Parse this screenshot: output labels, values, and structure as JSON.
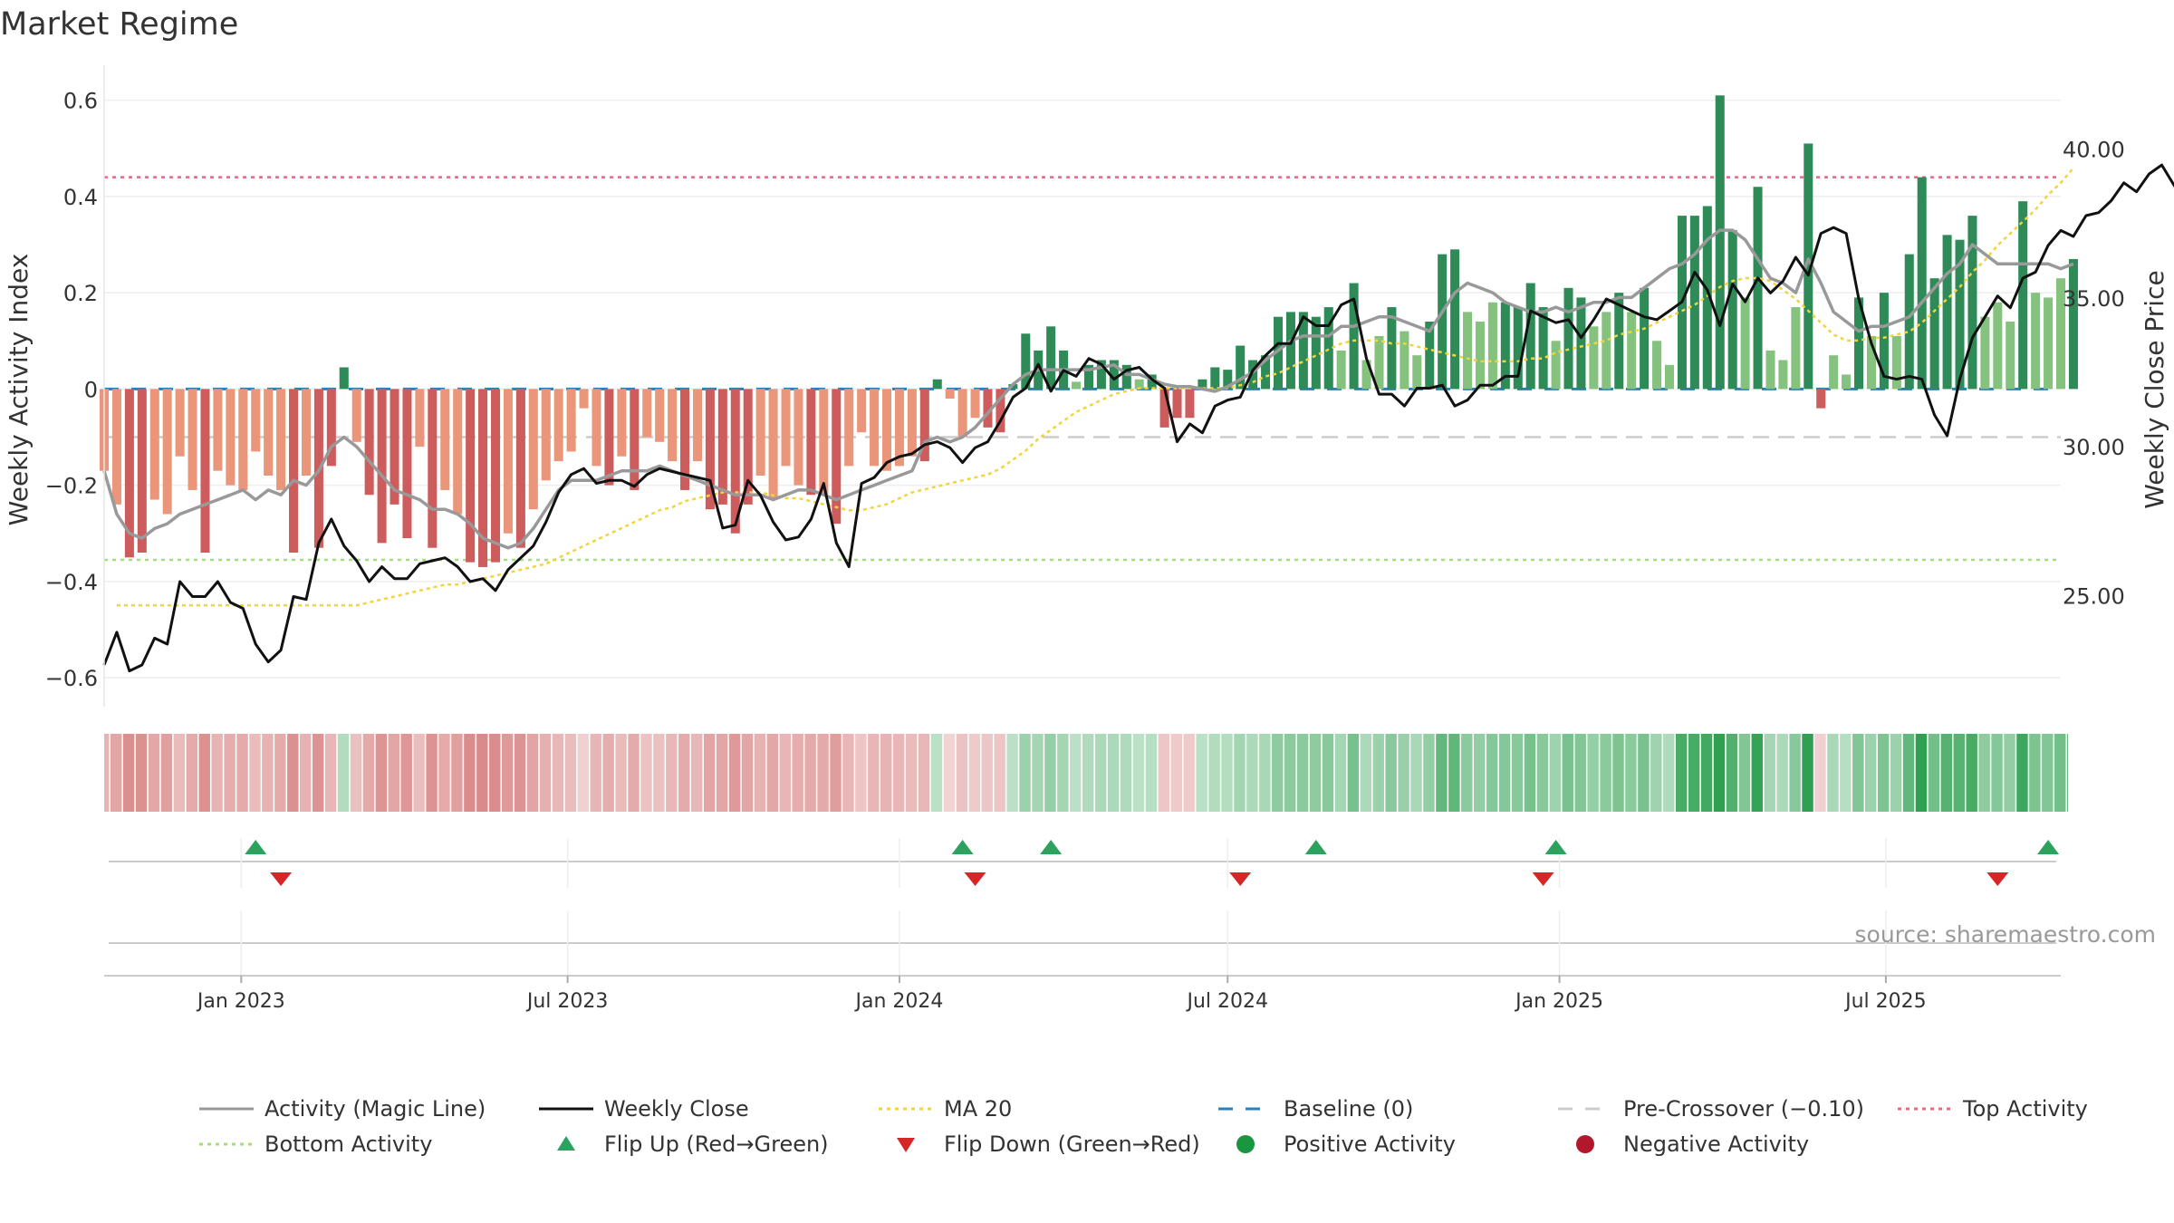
{
  "title": "Market Regime",
  "source": "source: sharemaestro.com",
  "chart_data": {
    "type": "bar",
    "ylabel_left": "Weekly Activity Index",
    "ylabel_right": "Weekly Close Price",
    "y_left_ticks": [
      0.6,
      0.4,
      0.2,
      0,
      -0.2,
      -0.4,
      -0.6
    ],
    "y_left_tick_labels": [
      "0.6",
      "0.4",
      "0.2",
      "0",
      "−0.2",
      "−0.4",
      "−0.6"
    ],
    "y_left_range": [
      -0.66,
      0.62
    ],
    "y_right_ticks": [
      40,
      35,
      30,
      25
    ],
    "y_right_tick_labels": [
      "40.00",
      "35.00",
      "30.00",
      "25.00"
    ],
    "y_right_range": [
      21.3,
      42.0
    ],
    "x_ticks": [
      "2023-01-01",
      "2023-07-01",
      "2024-01-01",
      "2024-07-01",
      "2025-01-01",
      "2025-07-01"
    ],
    "x_tick_labels": [
      "Jan 2023",
      "Jul 2023",
      "Jan 2024",
      "Jul 2024",
      "Jan 2025",
      "Jul 2025"
    ],
    "x_range": [
      "2022-10-17",
      "2025-10-06"
    ],
    "first_week": "2022-10-17",
    "reference_lines": {
      "top_activity": 0.44,
      "bottom_activity": -0.355,
      "baseline": 0,
      "pre_crossover": -0.1
    },
    "activity": [
      -0.17,
      -0.24,
      -0.35,
      -0.34,
      -0.23,
      -0.26,
      -0.14,
      -0.21,
      -0.34,
      -0.17,
      -0.2,
      -0.21,
      -0.13,
      -0.18,
      -0.21,
      -0.34,
      -0.18,
      -0.33,
      -0.16,
      0.045,
      -0.11,
      -0.22,
      -0.32,
      -0.24,
      -0.31,
      -0.12,
      -0.33,
      -0.21,
      -0.26,
      -0.36,
      -0.37,
      -0.36,
      -0.3,
      -0.33,
      -0.25,
      -0.19,
      -0.15,
      -0.13,
      -0.04,
      -0.16,
      -0.2,
      -0.14,
      -0.21,
      -0.1,
      -0.11,
      -0.15,
      -0.21,
      -0.15,
      -0.25,
      -0.24,
      -0.3,
      -0.24,
      -0.18,
      -0.23,
      -0.16,
      -0.2,
      -0.22,
      -0.22,
      -0.28,
      -0.16,
      -0.09,
      -0.16,
      -0.17,
      -0.16,
      -0.14,
      -0.15,
      0.02,
      -0.02,
      -0.1,
      -0.06,
      -0.08,
      -0.09,
      0.01,
      0.115,
      0.08,
      0.13,
      0.08,
      0.015,
      0.05,
      0.06,
      0.06,
      0.05,
      0.02,
      0.03,
      -0.08,
      -0.06,
      -0.06,
      0.02,
      0.045,
      0.04,
      0.09,
      0.06,
      0.07,
      0.15,
      0.16,
      0.16,
      0.15,
      0.17,
      0.08,
      0.22,
      0.06,
      0.11,
      0.17,
      0.12,
      0.07,
      0.14,
      0.28,
      0.29,
      0.16,
      0.14,
      0.18,
      0.18,
      0.17,
      0.22,
      0.17,
      0.1,
      0.21,
      0.19,
      0.13,
      0.16,
      0.2,
      0.16,
      0.21,
      0.1,
      0.05,
      0.36,
      0.36,
      0.38,
      0.61,
      0.33,
      0.19,
      0.42,
      0.08,
      0.06,
      0.17,
      0.51,
      -0.04,
      0.07,
      0.03,
      0.19,
      0.11,
      0.2,
      0.11,
      0.28,
      0.44,
      0.23,
      0.32,
      0.31,
      0.36,
      0.15,
      0.18,
      0.14,
      0.39,
      0.2,
      0.19,
      0.23,
      0.27
    ],
    "magic_line": [
      -0.17,
      -0.26,
      -0.3,
      -0.31,
      -0.29,
      -0.28,
      -0.26,
      -0.25,
      -0.24,
      -0.23,
      -0.22,
      -0.21,
      -0.23,
      -0.21,
      -0.22,
      -0.19,
      -0.2,
      -0.17,
      -0.12,
      -0.1,
      -0.12,
      -0.15,
      -0.18,
      -0.21,
      -0.22,
      -0.23,
      -0.25,
      -0.25,
      -0.26,
      -0.28,
      -0.31,
      -0.32,
      -0.33,
      -0.32,
      -0.29,
      -0.25,
      -0.21,
      -0.19,
      -0.19,
      -0.19,
      -0.18,
      -0.17,
      -0.17,
      -0.17,
      -0.16,
      -0.17,
      -0.18,
      -0.19,
      -0.2,
      -0.21,
      -0.22,
      -0.22,
      -0.22,
      -0.23,
      -0.22,
      -0.21,
      -0.21,
      -0.22,
      -0.23,
      -0.22,
      -0.21,
      -0.2,
      -0.19,
      -0.18,
      -0.17,
      -0.11,
      -0.1,
      -0.11,
      -0.1,
      -0.08,
      -0.05,
      -0.02,
      0.01,
      0.03,
      0.04,
      0.04,
      0.04,
      0.04,
      0.04,
      0.045,
      0.05,
      0.03,
      0.03,
      0.02,
      0.01,
      0.005,
      0.005,
      0.0,
      -0.005,
      0.005,
      0.02,
      0.035,
      0.06,
      0.08,
      0.1,
      0.11,
      0.11,
      0.11,
      0.13,
      0.13,
      0.14,
      0.15,
      0.15,
      0.14,
      0.13,
      0.12,
      0.16,
      0.2,
      0.22,
      0.21,
      0.2,
      0.18,
      0.17,
      0.16,
      0.16,
      0.17,
      0.16,
      0.17,
      0.18,
      0.18,
      0.19,
      0.19,
      0.21,
      0.23,
      0.25,
      0.26,
      0.28,
      0.31,
      0.33,
      0.33,
      0.31,
      0.27,
      0.23,
      0.22,
      0.2,
      0.27,
      0.22,
      0.16,
      0.14,
      0.12,
      0.13,
      0.13,
      0.14,
      0.15,
      0.18,
      0.21,
      0.24,
      0.26,
      0.3,
      0.28,
      0.26,
      0.26,
      0.26,
      0.26,
      0.26,
      0.25,
      0.26
    ],
    "weekly_close": [
      22.7,
      23.8,
      22.5,
      22.7,
      23.6,
      23.4,
      25.5,
      25.0,
      25.0,
      25.5,
      24.8,
      24.6,
      23.4,
      22.8,
      23.2,
      25.0,
      24.9,
      26.8,
      27.6,
      26.7,
      26.2,
      25.5,
      26.0,
      25.6,
      25.6,
      26.1,
      26.2,
      26.3,
      26.0,
      25.5,
      25.6,
      25.2,
      25.9,
      26.3,
      26.7,
      27.5,
      28.5,
      29.1,
      29.3,
      28.8,
      28.9,
      28.9,
      28.7,
      29.1,
      29.3,
      29.2,
      29.1,
      29.0,
      28.9,
      27.3,
      27.4,
      28.9,
      28.4,
      27.5,
      26.9,
      27.0,
      27.6,
      28.8,
      26.8,
      26.0,
      28.8,
      29.0,
      29.5,
      29.7,
      29.8,
      30.1,
      30.2,
      30.0,
      29.5,
      30.0,
      30.2,
      30.9,
      31.7,
      32.0,
      32.8,
      31.9,
      32.6,
      32.4,
      33.0,
      32.8,
      32.3,
      32.6,
      32.7,
      32.3,
      32.0,
      30.2,
      30.8,
      30.5,
      31.4,
      31.6,
      31.7,
      32.6,
      33.1,
      33.5,
      33.5,
      34.4,
      34.1,
      34.1,
      34.8,
      35.0,
      33.0,
      31.8,
      31.8,
      31.4,
      32.0,
      32.0,
      32.1,
      31.4,
      31.6,
      32.1,
      32.1,
      32.4,
      32.4,
      34.6,
      34.4,
      34.2,
      34.3,
      33.7,
      34.3,
      35.0,
      34.8,
      34.6,
      34.4,
      34.3,
      34.6,
      34.9,
      35.9,
      35.3,
      34.1,
      35.5,
      34.9,
      35.7,
      35.2,
      35.6,
      36.4,
      35.8,
      37.2,
      37.4,
      37.2,
      35.0,
      33.5,
      32.4,
      32.3,
      32.4,
      32.3,
      31.1,
      30.4,
      32.3,
      33.7,
      34.4,
      35.1,
      34.7,
      35.7,
      35.9,
      36.8,
      37.3,
      37.1,
      37.8,
      37.9,
      38.3,
      38.9,
      38.6,
      39.2,
      39.5,
      38.8,
      39.0,
      40.0,
      39.7,
      39.6,
      40.4
    ],
    "ma20_start_index": 1,
    "ma20": [
      24.7,
      24.7,
      24.7,
      24.7,
      24.7,
      24.7,
      24.7,
      24.7,
      24.7,
      24.7,
      24.7,
      24.7,
      24.7,
      24.7,
      24.7,
      24.7,
      24.7,
      24.7,
      24.7,
      24.7,
      24.8,
      24.9,
      25.0,
      25.1,
      25.2,
      25.3,
      25.4,
      25.4,
      25.5,
      25.6,
      25.7,
      25.8,
      25.9,
      26.0,
      26.1,
      26.3,
      26.5,
      26.7,
      26.9,
      27.1,
      27.3,
      27.5,
      27.7,
      27.9,
      28.0,
      28.2,
      28.3,
      28.4,
      28.5,
      28.5,
      28.5,
      28.5,
      28.4,
      28.3,
      28.3,
      28.2,
      28.1,
      28.0,
      27.9,
      27.9,
      28.0,
      28.1,
      28.3,
      28.5,
      28.6,
      28.7,
      28.8,
      28.9,
      29.0,
      29.1,
      29.3,
      29.6,
      29.9,
      30.3,
      30.6,
      30.9,
      31.2,
      31.4,
      31.6,
      31.8,
      31.9,
      32.0,
      32.0,
      32.0,
      32.0,
      32.0,
      32.0,
      32.0,
      32.0,
      32.1,
      32.2,
      32.4,
      32.5,
      32.7,
      32.9,
      33.1,
      33.3,
      33.5,
      33.6,
      33.6,
      33.6,
      33.5,
      33.5,
      33.4,
      33.3,
      33.2,
      33.1,
      33.0,
      32.9,
      32.9,
      32.9,
      32.9,
      33.0,
      33.0,
      33.2,
      33.3,
      33.4,
      33.5,
      33.6,
      33.8,
      33.9,
      34.0,
      34.2,
      34.4,
      34.6,
      34.8,
      35.1,
      35.4,
      35.6,
      35.7,
      35.7,
      35.6,
      35.3,
      35.0,
      34.6,
      34.2,
      33.8,
      33.6,
      33.6,
      33.7,
      33.7,
      33.8,
      33.9,
      34.2,
      34.6,
      35.0,
      35.4,
      35.9,
      36.3,
      36.8,
      37.2,
      37.6,
      38.0,
      38.5,
      38.9,
      39.4
    ],
    "flip_up_weeks": [
      12,
      68,
      75,
      96,
      115,
      154
    ],
    "flip_down_weeks": [
      14,
      69,
      90,
      114,
      150
    ]
  },
  "legend": [
    {
      "label": "Activity (Magic Line)",
      "marker": "line",
      "color": "#999999",
      "style": "solid"
    },
    {
      "label": "Weekly Close",
      "marker": "line",
      "color": "#111111",
      "style": "solid"
    },
    {
      "label": "MA 20",
      "marker": "line",
      "color": "#f2d43c",
      "style": "dotted"
    },
    {
      "label": "Baseline (0)",
      "marker": "line",
      "color": "#2c7fb8",
      "style": "dashed"
    },
    {
      "label": "Pre-Crossover (−0.10)",
      "marker": "line",
      "color": "#cccccc",
      "style": "dashed"
    },
    {
      "label": "Top Activity",
      "marker": "line",
      "color": "#e8677d",
      "style": "dotted"
    },
    {
      "label": "Bottom Activity",
      "marker": "line",
      "color": "#a6dd7e",
      "style": "dotted"
    },
    {
      "label": "Flip Up (Red→Green)",
      "marker": "tri-up",
      "color": "#2ca25f"
    },
    {
      "label": "Flip Down (Green→Red)",
      "marker": "tri-down",
      "color": "#d62728"
    },
    {
      "label": "Positive Activity",
      "marker": "circle",
      "color": "#1a9641"
    },
    {
      "label": "Negative Activity",
      "marker": "circle",
      "color": "#b2182b"
    }
  ],
  "colors": {
    "bar_pos_strong": "#2e8b57",
    "bar_pos_light": "#84c27e",
    "bar_neg_strong": "#cd5c5c",
    "bar_neg_light": "#e9967a"
  }
}
